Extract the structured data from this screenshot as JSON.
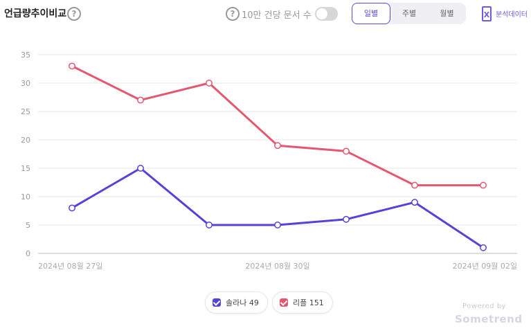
{
  "header": {
    "title": "언급량추이비교",
    "per_doc_label": "10만 건당 문서 수",
    "per_doc_enabled": false,
    "period_tabs": [
      {
        "label": "일별",
        "active": true
      },
      {
        "label": "주별",
        "active": false
      },
      {
        "label": "월별",
        "active": false
      }
    ],
    "export_label": "분석데이터"
  },
  "chart_data": {
    "type": "line",
    "x": [
      "2024-08-27",
      "2024-08-28",
      "2024-08-29",
      "2024-08-30",
      "2024-08-31",
      "2024-09-01",
      "2024-09-02"
    ],
    "x_tick_labels": [
      "2024년 08월 27일",
      "2024년 08월 30일",
      "2024년 09월 02일"
    ],
    "x_tick_indices": [
      0,
      3,
      6
    ],
    "y_ticks": [
      0,
      5,
      10,
      15,
      20,
      25,
      30,
      35
    ],
    "ylim": [
      0,
      35
    ],
    "grid": true,
    "legend_position": "bottom-center",
    "series": [
      {
        "name": "솔라나",
        "total": "49",
        "color": "#5443d8",
        "values": [
          8,
          15,
          5,
          5,
          6,
          9,
          1
        ]
      },
      {
        "name": "리플",
        "total": "151",
        "color": "#e5566f",
        "values": [
          33,
          27,
          30,
          19,
          18,
          12,
          12
        ]
      }
    ]
  },
  "footer": {
    "powered_by": "Powered by",
    "brand": "Sometrend"
  }
}
